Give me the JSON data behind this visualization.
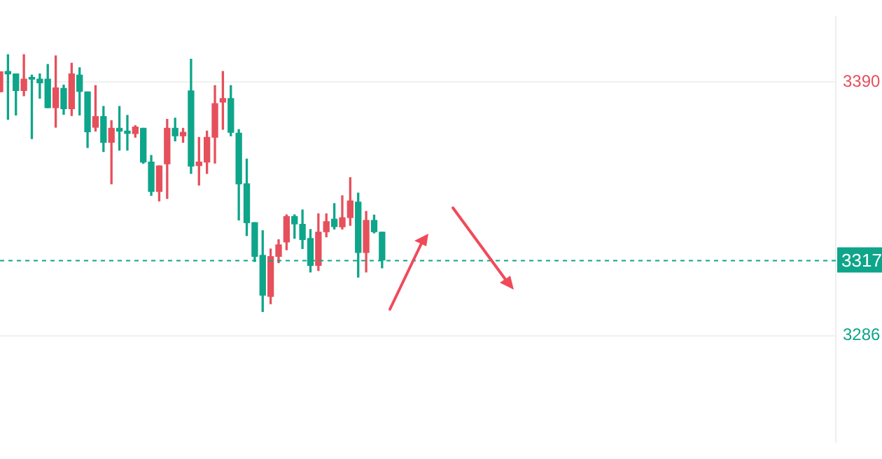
{
  "chart_data": {
    "type": "candlestick",
    "categories": [
      null,
      null,
      null,
      null,
      null,
      null,
      null,
      null,
      null,
      null,
      null,
      null,
      null,
      null,
      null,
      null,
      null,
      null,
      null,
      null,
      null,
      null,
      null,
      null,
      null,
      null,
      null,
      null,
      null,
      null,
      null,
      null,
      null,
      null,
      null,
      null,
      null,
      null,
      null,
      null,
      null,
      null,
      null,
      null,
      null,
      null,
      null,
      null,
      null,
      null,
      null,
      null,
      null,
      null,
      null,
      null,
      null,
      null,
      null,
      null,
      null,
      null,
      null,
      null,
      null,
      null,
      null,
      null,
      null,
      null,
      null,
      null,
      null,
      null,
      null,
      null,
      null,
      null,
      null,
      null,
      null,
      null,
      null,
      null,
      null,
      null,
      null,
      null,
      null,
      null,
      null,
      null,
      null,
      null,
      null,
      null,
      null,
      null,
      null,
      null,
      null,
      null,
      null,
      null,
      null,
      null
    ],
    "ohlc": [
      [
        3385.9,
        3394.1,
        3385.9,
        3394.1
      ],
      [
        3394.2,
        3401.1,
        3374.6,
        3393.2
      ],
      [
        3393.2,
        3393.2,
        3376.4,
        3386.4
      ],
      [
        3386.4,
        3401.1,
        3384.3,
        3391.1
      ],
      [
        3391.8,
        3392.7,
        3366.7,
        3391.1
      ],
      [
        3391.1,
        3393.2,
        3383.3,
        3389.6
      ],
      [
        3391.1,
        3397.1,
        3379.4,
        3379.4
      ],
      [
        3379.4,
        3400.6,
        3371.4,
        3387.5
      ],
      [
        3387.3,
        3388.6,
        3376.7,
        3379.0
      ],
      [
        3379.0,
        3397.6,
        3376.2,
        3393.2
      ],
      [
        3392.7,
        3395.7,
        3376.4,
        3386.1
      ],
      [
        3385.8,
        3385.8,
        3363.1,
        3369.5
      ],
      [
        3371.4,
        3388.4,
        3369.8,
        3375.7
      ],
      [
        3375.7,
        3379.9,
        3361.4,
        3365.2
      ],
      [
        3365.2,
        3374.1,
        3348.2,
        3370.9
      ],
      [
        3370.9,
        3379.9,
        3362.0,
        3369.8
      ],
      [
        3369.8,
        3376.2,
        3362.0,
        3368.9
      ],
      [
        3368.8,
        3372.0,
        3367.3,
        3371.4
      ],
      [
        3370.9,
        3370.9,
        3356.6,
        3357.1
      ],
      [
        3357.1,
        3359.8,
        3343.5,
        3345.1
      ],
      [
        3345.1,
        3355.5,
        3341.2,
        3355.5
      ],
      [
        3356.4,
        3374.6,
        3342.2,
        3370.9
      ],
      [
        3370.9,
        3375.1,
        3365.8,
        3367.9
      ],
      [
        3367.9,
        3370.9,
        3365.2,
        3369.3
      ],
      [
        3386.3,
        3399.2,
        3352.5,
        3355.5
      ],
      [
        3355.7,
        3367.2,
        3347.7,
        3357.1
      ],
      [
        3357.1,
        3369.8,
        3352.5,
        3367.2
      ],
      [
        3367.3,
        3388.4,
        3356.7,
        3381.0
      ],
      [
        3381.7,
        3394.2,
        3370.5,
        3383.1
      ],
      [
        3383.1,
        3388.4,
        3367.9,
        3369.3
      ],
      [
        3368.9,
        3370.4,
        3333.4,
        3348.2
      ],
      [
        3348.2,
        3358.3,
        3327.0,
        3332.3
      ],
      [
        3332.3,
        3332.3,
        3316.4,
        3318.5
      ],
      [
        3318.9,
        3329.0,
        3295.9,
        3302.6
      ],
      [
        3302.1,
        3321.5,
        3299.1,
        3318.4
      ],
      [
        3318.5,
        3325.3,
        3315.9,
        3323.2
      ],
      [
        3324.4,
        3335.5,
        3321.2,
        3334.8
      ],
      [
        3334.8,
        3335.5,
        3325.9,
        3331.8
      ],
      [
        3331.6,
        3337.5,
        3321.7,
        3325.4
      ],
      [
        3325.8,
        3329.5,
        3312.1,
        3314.8
      ],
      [
        3314.8,
        3335.9,
        3312.7,
        3328.4
      ],
      [
        3328.6,
        3335.9,
        3326.5,
        3332.7
      ],
      [
        3333.7,
        3340.1,
        3329.7,
        3330.7
      ],
      [
        3330.6,
        3343.3,
        3329.7,
        3334.3
      ],
      [
        3334.4,
        3350.7,
        3331.2,
        3341.2
      ],
      [
        3340.7,
        3344.4,
        3310.0,
        3320.1
      ],
      [
        3320.1,
        3336.9,
        3312.1,
        3333.2
      ],
      [
        3333.2,
        3335.4,
        3328.1,
        3328.6
      ],
      [
        3328.4,
        3328.4,
        3313.8,
        3317
      ],
      null,
      null,
      null,
      null,
      null,
      null,
      null,
      null,
      null,
      null,
      null,
      null,
      null,
      null,
      null,
      null,
      null,
      null,
      null,
      null,
      null,
      null,
      null,
      null,
      null,
      null,
      null,
      null,
      null,
      null,
      null,
      null,
      null,
      null,
      null,
      null,
      null,
      null,
      null,
      null,
      null,
      null,
      null,
      null,
      null,
      null,
      null,
      null,
      null,
      null,
      null,
      null,
      null,
      null,
      null,
      null,
      null
    ],
    "colors": [
      "#e5505c",
      "#0ea58a",
      "#0ea58a",
      "#e5505c",
      "#0ea58a",
      "#0ea58a",
      "#0ea58a",
      "#e5505c",
      "#0ea58a",
      "#e5505c",
      "#0ea58a",
      "#0ea58a",
      "#e5505c",
      "#0ea58a",
      "#e5505c",
      "#0ea58a",
      "#0ea58a",
      "#e5505c",
      "#0ea58a",
      "#0ea58a",
      "#e5505c",
      "#e5505c",
      "#0ea58a",
      "#e5505c",
      "#0ea58a",
      "#e5505c",
      "#e5505c",
      "#e5505c",
      "#e5505c",
      "#0ea58a",
      "#0ea58a",
      "#0ea58a",
      "#0ea58a",
      "#0ea58a",
      "#e5505c",
      "#e5505c",
      "#e5505c",
      "#0ea58a",
      "#0ea58a",
      "#0ea58a",
      "#e5505c",
      "#e5505c",
      "#0ea58a",
      "#e5505c",
      "#e5505c",
      "#0ea58a",
      "#e5505c",
      "#0ea58a",
      "#0ea58a",
      null,
      null,
      null,
      null,
      null,
      null,
      null,
      null,
      null,
      null,
      null,
      null,
      null,
      null,
      null,
      null,
      null,
      null,
      null,
      null,
      null,
      null,
      null,
      null,
      null,
      null,
      null,
      null,
      null,
      null,
      null,
      null,
      null,
      null,
      null,
      null,
      null,
      null,
      null,
      null,
      null,
      null,
      null,
      null,
      null,
      null,
      null,
      null,
      null,
      null,
      null,
      null,
      null,
      null,
      null,
      null,
      null
    ],
    "ylim": [
      3242.5,
      3416.5
    ],
    "yticks": [
      3286,
      3390
    ],
    "grid": "y",
    "tick_labels": "y",
    "legend": false,
    "ref_lines": [
      {
        "axis": "y",
        "value": 3317,
        "label": "3317",
        "color": "#0ea58a",
        "line_style": "dashed"
      }
    ]
  }
}
